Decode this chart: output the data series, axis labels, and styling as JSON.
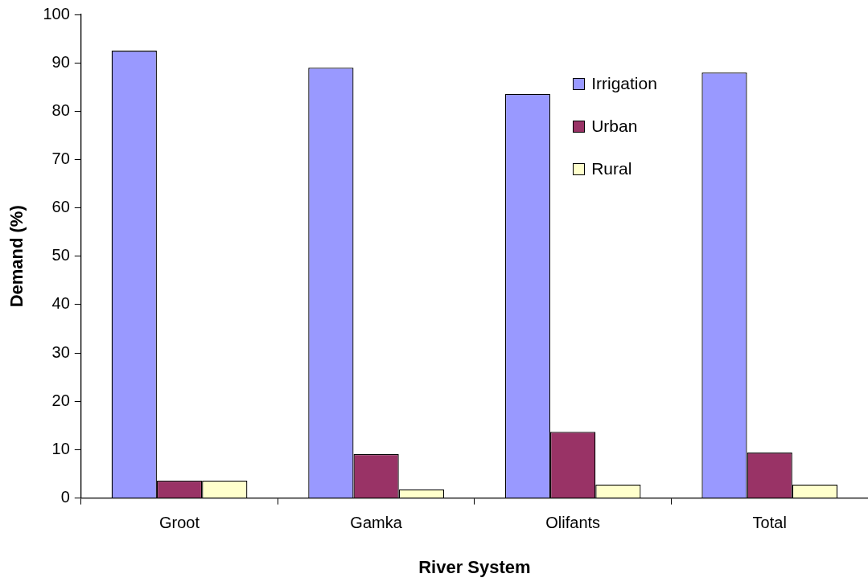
{
  "chart_data": {
    "type": "bar",
    "xlabel": "River System",
    "ylabel": "Demand (%)",
    "categories": [
      "Groot",
      "Gamka",
      "Olifants",
      "Total"
    ],
    "series": [
      {
        "name": "Irrigation",
        "color": "#9999ff",
        "values": [
          92.5,
          89.0,
          83.6,
          88.0
        ]
      },
      {
        "name": "Urban",
        "color": "#993366",
        "values": [
          3.6,
          9.1,
          13.7,
          9.4
        ]
      },
      {
        "name": "Rural",
        "color": "#ffffcc",
        "values": [
          3.6,
          1.8,
          2.8,
          2.8
        ]
      }
    ],
    "ylim": [
      0,
      100
    ],
    "yticks": [
      0,
      10,
      20,
      30,
      40,
      50,
      60,
      70,
      80,
      90,
      100
    ],
    "grid": false,
    "legend": "top right"
  }
}
